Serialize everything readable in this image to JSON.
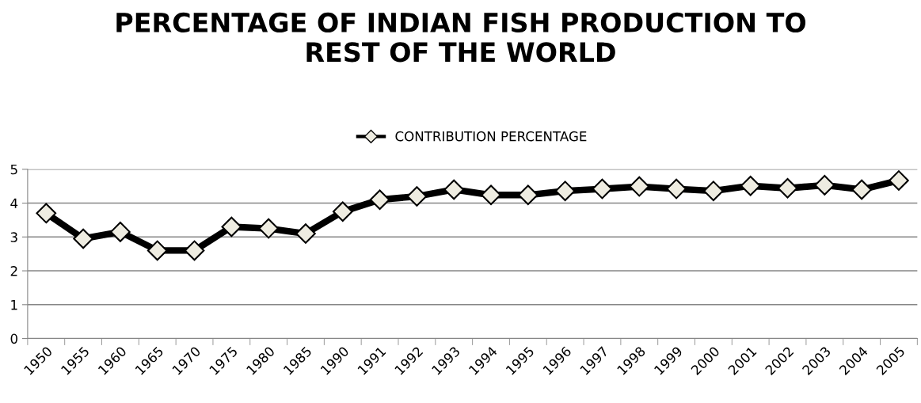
{
  "chart_data": {
    "type": "line",
    "title": "PERCENTAGE OF INDIAN FISH PRODUCTION TO\nREST OF THE WORLD",
    "categories": [
      "1950",
      "1955",
      "1960",
      "1965",
      "1970",
      "1975",
      "1980",
      "1985",
      "1990",
      "1991",
      "1992",
      "1993",
      "1994",
      "1995",
      "1996",
      "1997",
      "1998",
      "1999",
      "2000",
      "2001",
      "2002",
      "2003",
      "2004",
      "2005"
    ],
    "series": [
      {
        "name": "CONTRIBUTION PERCENTAGE",
        "color": "#000000",
        "values": [
          3.7,
          2.95,
          3.15,
          2.6,
          2.6,
          3.3,
          3.25,
          3.1,
          3.75,
          4.1,
          4.2,
          4.4,
          4.24,
          4.24,
          4.36,
          4.42,
          4.49,
          4.42,
          4.36,
          4.51,
          4.44,
          4.53,
          4.4,
          4.67
        ]
      }
    ],
    "ylim": [
      0,
      5
    ],
    "yticks": [
      0,
      1,
      2,
      3,
      4,
      5
    ],
    "grid": "y",
    "legend": "top",
    "marker": "diamond",
    "line_style": "solid"
  }
}
